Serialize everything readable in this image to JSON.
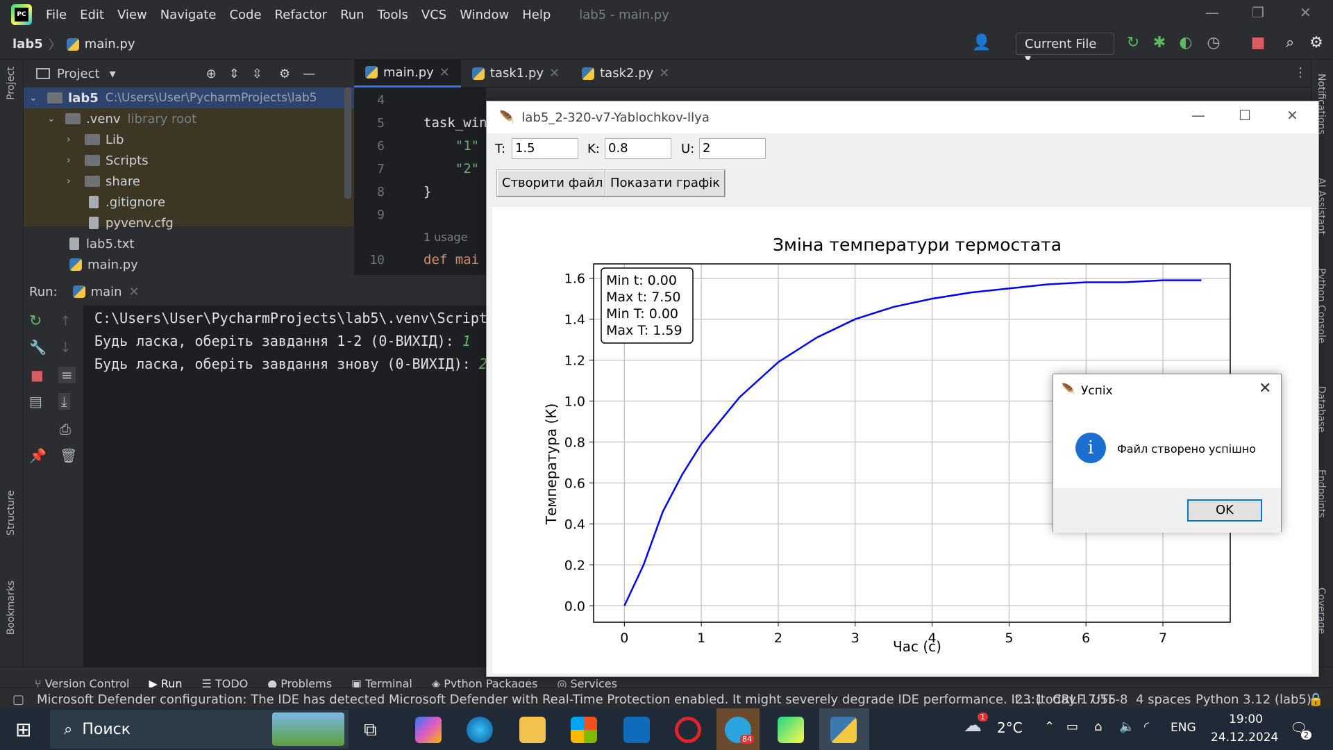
{
  "ide": {
    "menu": [
      "File",
      "Edit",
      "View",
      "Navigate",
      "Code",
      "Refactor",
      "Run",
      "Tools",
      "VCS",
      "Window",
      "Help"
    ],
    "title": "lab5 - main.py",
    "breadcrumb_project": "lab5",
    "breadcrumb_file": "main.py",
    "run_config": "Current File",
    "project_panel_title": "Project",
    "tree": [
      {
        "label": "lab5",
        "extra": "C:\\Users\\User\\PycharmProjects\\lab5"
      },
      {
        "label": ".venv",
        "extra": "library root"
      },
      {
        "label": "Lib"
      },
      {
        "label": "Scripts"
      },
      {
        "label": "share"
      },
      {
        "label": ".gitignore"
      },
      {
        "label": "pyvenv.cfg"
      },
      {
        "label": "lab5.txt"
      },
      {
        "label": "main.py"
      }
    ],
    "tabs": [
      "main.py",
      "task1.py",
      "task2.py"
    ],
    "code": {
      "lines": [
        {
          "num": "4",
          "text": ""
        },
        {
          "num": "5",
          "text": "task_win"
        },
        {
          "num": "6",
          "text": "    \"1\""
        },
        {
          "num": "7",
          "text": "    \"2\""
        },
        {
          "num": "8",
          "text": "}"
        },
        {
          "num": "9",
          "text": ""
        },
        {
          "num": "10",
          "text": "def mai"
        }
      ],
      "usage_hint": "1 usage"
    },
    "run_label": "Run:",
    "run_tab": "main",
    "console": [
      "C:\\Users\\User\\PycharmProjects\\lab5\\.venv\\Script",
      "Будь ласка, оберіть завдання 1-2 (0-ВИХІД): ",
      "Будь ласка, оберіть завдання знову (0-ВИХІД): "
    ],
    "console_inputs": [
      "1",
      "2"
    ],
    "bottom_tools": [
      "Version Control",
      "Run",
      "TODO",
      "Problems",
      "Terminal",
      "Python Packages",
      "Services"
    ],
    "left_strip": [
      "Project",
      "Structure",
      "Bookmarks"
    ],
    "right_strip": [
      "Notifications",
      "AI Assistant",
      "Python Console",
      "Database",
      "Endpoints",
      "Coverage"
    ],
    "status_message": "Microsoft Defender configuration: The IDE has detected Microsoft Defender with Real-Time Protection enabled. It might severely degrade IDE performance. It... (today 17:55",
    "status_items": [
      "23:1",
      "CRLF",
      "UTF-8",
      "4 spaces",
      "Python 3.12 (lab5)"
    ]
  },
  "tk": {
    "title": "lab5_2-320-v7-Yablochkov-Ilya",
    "fields": [
      {
        "label": "T:",
        "value": "1.5"
      },
      {
        "label": "K:",
        "value": "0.8"
      },
      {
        "label": "U:",
        "value": "2"
      }
    ],
    "btn_create": "Створити файл",
    "btn_show": "Показати графік"
  },
  "chart_data": {
    "type": "line",
    "title": "Зміна температури термостата",
    "xlabel": "Час (с)",
    "ylabel": "Температура (К)",
    "xlim": [
      -0.4,
      7.875
    ],
    "ylim": [
      -0.08,
      1.67
    ],
    "xticks": [
      0,
      1,
      2,
      3,
      4,
      5,
      6,
      7
    ],
    "yticks": [
      0.0,
      0.2,
      0.4,
      0.6,
      0.8,
      1.0,
      1.2,
      1.4,
      1.6
    ],
    "grid": true,
    "series": [
      {
        "color": "#0000ff",
        "x": [
          0,
          0.25,
          0.5,
          0.75,
          1,
          1.5,
          2,
          2.5,
          3,
          3.5,
          4,
          4.5,
          5,
          5.5,
          6,
          6.5,
          7,
          7.5
        ],
        "y": [
          0,
          0.2,
          0.46,
          0.64,
          0.79,
          1.02,
          1.19,
          1.31,
          1.4,
          1.46,
          1.5,
          1.53,
          1.55,
          1.57,
          1.58,
          1.58,
          1.59,
          1.59
        ]
      }
    ],
    "annotation": [
      "Min t: 0.00",
      "Max t: 7.50",
      "Min T: 0.00",
      "Max T: 1.59"
    ],
    "annotation_position": "top-left"
  },
  "dialog": {
    "title": "Успіх",
    "message": "Файл створено успішно",
    "ok": "OK"
  },
  "taskbar": {
    "search": "Поиск",
    "weather": "2°C",
    "lang": "ENG",
    "time": "19:00",
    "date": "24.12.2024",
    "notif_count": "2",
    "telegram_badge": "84",
    "weather_badge": "1"
  }
}
